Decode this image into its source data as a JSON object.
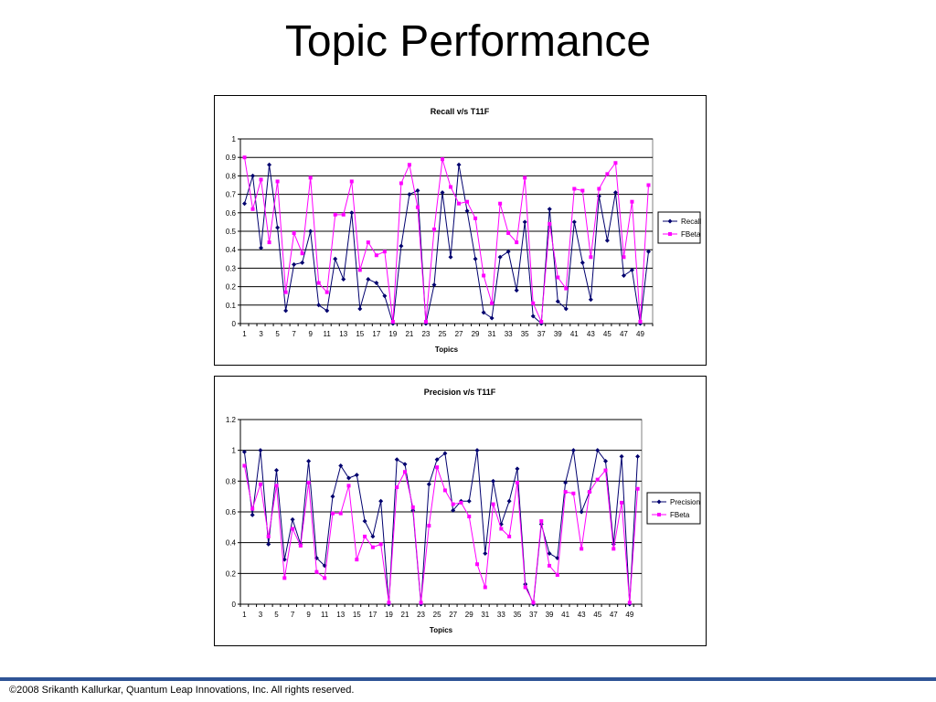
{
  "slide": {
    "title": "Topic Performance",
    "footer": "©2008 Srikanth Kallurkar, Quantum Leap Innovations, Inc. All rights reserved."
  },
  "colors": {
    "series_a": "#00006e",
    "series_b": "#ff00ff",
    "grid": "#000000",
    "plot_background": "#ffffff",
    "footer_rule": "#2f5496"
  },
  "chart_data": [
    {
      "type": "line",
      "title": "Recall v/s T11F",
      "xlabel": "Topics",
      "ylabel": "",
      "ylim": [
        0,
        1
      ],
      "yticks": [
        "0",
        "0.1",
        "0.2",
        "0.3",
        "0.4",
        "0.5",
        "0.6",
        "0.7",
        "0.8",
        "0.9",
        "1"
      ],
      "x": [
        1,
        2,
        3,
        4,
        5,
        6,
        7,
        8,
        9,
        10,
        11,
        12,
        13,
        14,
        15,
        16,
        17,
        18,
        19,
        20,
        21,
        22,
        23,
        24,
        25,
        26,
        27,
        28,
        29,
        30,
        31,
        32,
        33,
        34,
        35,
        36,
        37,
        38,
        39,
        40,
        41,
        42,
        43,
        44,
        45,
        46,
        47,
        48,
        49,
        50
      ],
      "xtick_labels": [
        "1",
        "3",
        "5",
        "7",
        "9",
        "11",
        "13",
        "15",
        "17",
        "19",
        "21",
        "23",
        "25",
        "27",
        "29",
        "31",
        "33",
        "35",
        "37",
        "39",
        "41",
        "43",
        "45",
        "47",
        "49"
      ],
      "grid": true,
      "legend_position": "right",
      "series": [
        {
          "name": "Recall",
          "color": "#00006e",
          "marker": "diamond",
          "values": [
            0.65,
            0.8,
            0.41,
            0.86,
            0.52,
            0.07,
            0.32,
            0.33,
            0.5,
            0.1,
            0.07,
            0.35,
            0.24,
            0.6,
            0.08,
            0.24,
            0.22,
            0.15,
            0.0,
            0.42,
            0.7,
            0.72,
            0.0,
            0.21,
            0.71,
            0.36,
            0.86,
            0.61,
            0.35,
            0.06,
            0.03,
            0.36,
            0.39,
            0.18,
            0.55,
            0.04,
            0.0,
            0.62,
            0.12,
            0.08,
            0.55,
            0.33,
            0.13,
            0.69,
            0.45,
            0.71,
            0.26,
            0.29,
            0.0,
            0.39
          ]
        },
        {
          "name": "FBeta",
          "color": "#ff00ff",
          "marker": "square",
          "values": [
            0.9,
            0.62,
            0.78,
            0.44,
            0.77,
            0.17,
            0.49,
            0.38,
            0.79,
            0.22,
            0.17,
            0.59,
            0.59,
            0.77,
            0.29,
            0.44,
            0.37,
            0.39,
            0.01,
            0.76,
            0.86,
            0.63,
            0.01,
            0.51,
            0.89,
            0.74,
            0.65,
            0.66,
            0.57,
            0.26,
            0.11,
            0.65,
            0.49,
            0.44,
            0.79,
            0.11,
            0.01,
            0.54,
            0.25,
            0.19,
            0.73,
            0.72,
            0.36,
            0.73,
            0.81,
            0.87,
            0.36,
            0.66,
            0.01,
            0.75
          ]
        }
      ]
    },
    {
      "type": "line",
      "title": "Precision v/s T11F",
      "xlabel": "Topics",
      "ylabel": "",
      "ylim": [
        0,
        1.2
      ],
      "yticks": [
        "0",
        "0.2",
        "0.4",
        "0.6",
        "0.8",
        "1",
        "1.2"
      ],
      "x": [
        1,
        2,
        3,
        4,
        5,
        6,
        7,
        8,
        9,
        10,
        11,
        12,
        13,
        14,
        15,
        16,
        17,
        18,
        19,
        20,
        21,
        22,
        23,
        24,
        25,
        26,
        27,
        28,
        29,
        30,
        31,
        32,
        33,
        34,
        35,
        36,
        37,
        38,
        39,
        40,
        41,
        42,
        43,
        44,
        45,
        46,
        47,
        48,
        49,
        50
      ],
      "xtick_labels": [
        "1",
        "3",
        "5",
        "7",
        "9",
        "11",
        "13",
        "15",
        "17",
        "19",
        "21",
        "23",
        "25",
        "27",
        "29",
        "31",
        "33",
        "35",
        "37",
        "39",
        "41",
        "43",
        "45",
        "47",
        "49"
      ],
      "grid": true,
      "legend_position": "right",
      "series": [
        {
          "name": "Precision",
          "color": "#00006e",
          "marker": "diamond",
          "values": [
            0.99,
            0.58,
            1.0,
            0.39,
            0.87,
            0.29,
            0.55,
            0.39,
            0.93,
            0.3,
            0.25,
            0.7,
            0.9,
            0.82,
            0.84,
            0.54,
            0.44,
            0.67,
            0.0,
            0.94,
            0.91,
            0.61,
            0.0,
            0.78,
            0.94,
            0.98,
            0.61,
            0.67,
            0.67,
            1.0,
            0.33,
            0.8,
            0.52,
            0.67,
            0.88,
            0.13,
            0.0,
            0.52,
            0.33,
            0.3,
            0.79,
            1.0,
            0.6,
            0.73,
            1.0,
            0.93,
            0.39,
            0.96,
            0.0,
            0.96
          ]
        },
        {
          "name": "FBeta",
          "color": "#ff00ff",
          "marker": "square",
          "values": [
            0.9,
            0.62,
            0.78,
            0.44,
            0.77,
            0.17,
            0.49,
            0.38,
            0.79,
            0.21,
            0.17,
            0.59,
            0.59,
            0.77,
            0.29,
            0.44,
            0.37,
            0.39,
            0.01,
            0.76,
            0.86,
            0.63,
            0.01,
            0.51,
            0.89,
            0.74,
            0.65,
            0.66,
            0.57,
            0.26,
            0.11,
            0.65,
            0.49,
            0.44,
            0.79,
            0.11,
            0.01,
            0.54,
            0.25,
            0.19,
            0.73,
            0.72,
            0.36,
            0.73,
            0.81,
            0.87,
            0.36,
            0.66,
            0.01,
            0.75
          ]
        }
      ]
    }
  ]
}
